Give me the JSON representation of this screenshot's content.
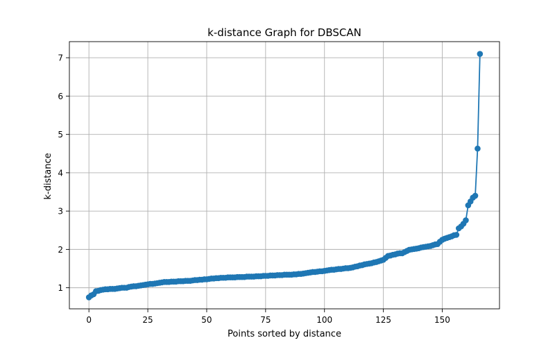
{
  "chart_data": {
    "type": "line",
    "title": "k-distance Graph for DBSCAN",
    "xlabel": "Points sorted by distance",
    "ylabel": "k-distance",
    "xlim": [
      -8.3,
      174.3
    ],
    "ylim": [
      0.45,
      7.42
    ],
    "xticks": [
      0,
      25,
      50,
      75,
      100,
      125,
      150
    ],
    "yticks": [
      1,
      2,
      3,
      4,
      5,
      6,
      7
    ],
    "grid": true,
    "line_color": "#1f77b4",
    "marker": "circle",
    "series": [
      {
        "name": "",
        "x": [
          0,
          1,
          2,
          3,
          4,
          5,
          6,
          7,
          8,
          9,
          10,
          11,
          12,
          13,
          14,
          15,
          16,
          17,
          18,
          19,
          20,
          21,
          22,
          23,
          24,
          25,
          26,
          27,
          28,
          29,
          30,
          31,
          32,
          33,
          34,
          35,
          36,
          37,
          38,
          39,
          40,
          41,
          42,
          43,
          44,
          45,
          46,
          47,
          48,
          49,
          50,
          51,
          52,
          53,
          54,
          55,
          56,
          57,
          58,
          59,
          60,
          61,
          62,
          63,
          64,
          65,
          66,
          67,
          68,
          69,
          70,
          71,
          72,
          73,
          74,
          75,
          76,
          77,
          78,
          79,
          80,
          81,
          82,
          83,
          84,
          85,
          86,
          87,
          88,
          89,
          90,
          91,
          92,
          93,
          94,
          95,
          96,
          97,
          98,
          99,
          100,
          101,
          102,
          103,
          104,
          105,
          106,
          107,
          108,
          109,
          110,
          111,
          112,
          113,
          114,
          115,
          116,
          117,
          118,
          119,
          120,
          121,
          122,
          123,
          124,
          125,
          126,
          127,
          128,
          129,
          130,
          131,
          132,
          133,
          134,
          135,
          136,
          137,
          138,
          139,
          140,
          141,
          142,
          143,
          144,
          145,
          146,
          147,
          148,
          149,
          150,
          151,
          152,
          153,
          154,
          155,
          156,
          157,
          158,
          159,
          160,
          161,
          162,
          163,
          164,
          165,
          166
        ],
        "values": [
          0.75,
          0.8,
          0.83,
          0.91,
          0.92,
          0.94,
          0.95,
          0.96,
          0.96,
          0.97,
          0.97,
          0.97,
          0.98,
          0.99,
          1.0,
          1.0,
          1.0,
          1.02,
          1.03,
          1.04,
          1.04,
          1.05,
          1.06,
          1.07,
          1.08,
          1.09,
          1.1,
          1.1,
          1.11,
          1.12,
          1.13,
          1.14,
          1.15,
          1.15,
          1.15,
          1.16,
          1.16,
          1.16,
          1.17,
          1.17,
          1.17,
          1.18,
          1.18,
          1.18,
          1.19,
          1.2,
          1.2,
          1.21,
          1.21,
          1.22,
          1.22,
          1.23,
          1.24,
          1.24,
          1.25,
          1.25,
          1.26,
          1.26,
          1.26,
          1.27,
          1.27,
          1.27,
          1.27,
          1.28,
          1.28,
          1.28,
          1.28,
          1.29,
          1.29,
          1.29,
          1.29,
          1.3,
          1.3,
          1.3,
          1.31,
          1.31,
          1.31,
          1.32,
          1.32,
          1.32,
          1.33,
          1.33,
          1.33,
          1.34,
          1.34,
          1.34,
          1.34,
          1.35,
          1.35,
          1.36,
          1.36,
          1.37,
          1.38,
          1.39,
          1.4,
          1.41,
          1.41,
          1.42,
          1.43,
          1.43,
          1.44,
          1.45,
          1.46,
          1.47,
          1.47,
          1.48,
          1.49,
          1.49,
          1.5,
          1.51,
          1.51,
          1.52,
          1.53,
          1.55,
          1.56,
          1.58,
          1.59,
          1.61,
          1.62,
          1.63,
          1.64,
          1.66,
          1.67,
          1.69,
          1.71,
          1.73,
          1.78,
          1.83,
          1.84,
          1.86,
          1.87,
          1.89,
          1.9,
          1.9,
          1.93,
          1.96,
          1.99,
          2.0,
          2.01,
          2.02,
          2.03,
          2.05,
          2.06,
          2.07,
          2.08,
          2.09,
          2.11,
          2.13,
          2.14,
          2.2,
          2.25,
          2.28,
          2.3,
          2.32,
          2.34,
          2.37,
          2.38,
          2.55,
          2.6,
          2.67,
          2.76,
          3.15,
          3.25,
          3.35,
          3.4,
          4.63,
          7.1
        ]
      }
    ]
  }
}
